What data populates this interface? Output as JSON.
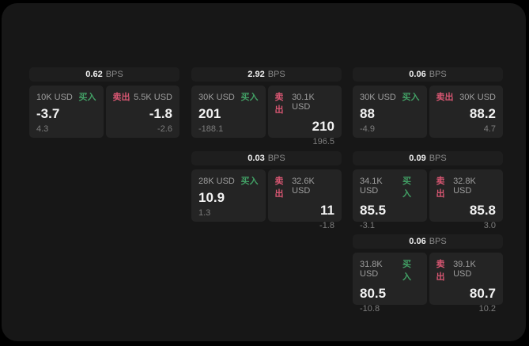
{
  "labels": {
    "buy_side": "买入",
    "sell_side": "卖出",
    "bps_unit": "BPS"
  },
  "colors": {
    "buy": "#42a065",
    "sell": "#d85672",
    "window_bg": "#171717",
    "header_bg": "#1e1e1e",
    "panel_bg": "#242424"
  },
  "cards": [
    {
      "bps": "0.62",
      "buy": {
        "notional": "10K USD",
        "main": "-3.7",
        "sub": "4.3"
      },
      "sell": {
        "notional": "5.5K USD",
        "main": "-1.8",
        "sub": "-2.6"
      }
    },
    {
      "bps": "2.92",
      "buy": {
        "notional": "30K USD",
        "main": "201",
        "sub": "-188.1"
      },
      "sell": {
        "notional": "30.1K USD",
        "main": "210",
        "sub": "196.5"
      }
    },
    {
      "bps": "0.06",
      "buy": {
        "notional": "30K USD",
        "main": "88",
        "sub": "-4.9"
      },
      "sell": {
        "notional": "30K USD",
        "main": "88.2",
        "sub": "4.7"
      }
    },
    {
      "bps": "0.03",
      "buy": {
        "notional": "28K USD",
        "main": "10.9",
        "sub": "1.3"
      },
      "sell": {
        "notional": "32.6K USD",
        "main": "11",
        "sub": "-1.8"
      }
    },
    {
      "bps": "0.09",
      "buy": {
        "notional": "34.1K USD",
        "main": "85.5",
        "sub": "-3.1"
      },
      "sell": {
        "notional": "32.8K USD",
        "main": "85.8",
        "sub": "3.0"
      }
    },
    {
      "bps": "0.06",
      "buy": {
        "notional": "31.8K USD",
        "main": "80.5",
        "sub": "-10.8"
      },
      "sell": {
        "notional": "39.1K USD",
        "main": "80.7",
        "sub": "10.2"
      }
    }
  ]
}
